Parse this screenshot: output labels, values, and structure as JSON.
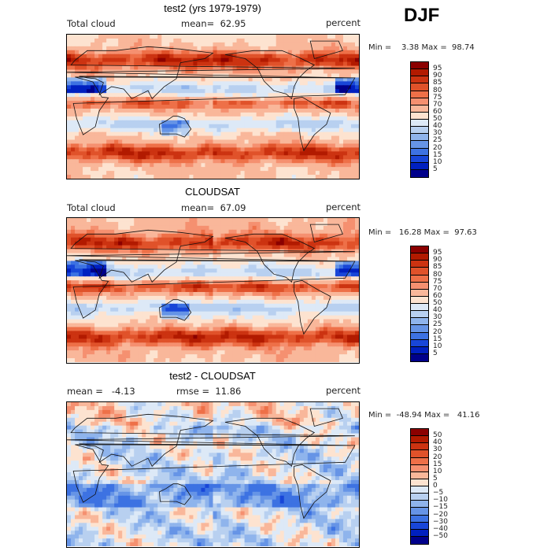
{
  "season": "DJF",
  "chart_data": [
    {
      "type": "heatmap",
      "title": "test2 (yrs 1979-1979)",
      "variable": "Total cloud",
      "mean_label": "mean=",
      "mean": "62.95",
      "units": "percent",
      "minmax": "Min =    3.38 Max =  98.74",
      "colorbar_levels": [
        "95",
        "90",
        "85",
        "80",
        "75",
        "70",
        "60",
        "50",
        "40",
        "30",
        "25",
        "20",
        "15",
        "10",
        "5"
      ],
      "colorbar_colors": [
        "#8b0000",
        "#b21a00",
        "#cc3311",
        "#e0522a",
        "#ee7048",
        "#f59070",
        "#f9b79a",
        "#fde3d0",
        "#dde9f7",
        "#b8d0f0",
        "#8fb4ec",
        "#6694e6",
        "#3d72e2",
        "#1846d8",
        "#0020c0",
        "#00008b"
      ],
      "field": "total_cloud_model"
    },
    {
      "type": "heatmap",
      "title": "CLOUDSAT",
      "variable": "Total cloud",
      "mean_label": "mean=",
      "mean": "67.09",
      "units": "percent",
      "minmax": "Min =   16.28 Max =  97.63",
      "colorbar_levels": [
        "95",
        "90",
        "85",
        "80",
        "75",
        "70",
        "60",
        "50",
        "40",
        "30",
        "25",
        "20",
        "15",
        "10",
        "5"
      ],
      "colorbar_colors": [
        "#8b0000",
        "#b21a00",
        "#cc3311",
        "#e0522a",
        "#ee7048",
        "#f59070",
        "#f9b79a",
        "#fde3d0",
        "#dde9f7",
        "#b8d0f0",
        "#8fb4ec",
        "#6694e6",
        "#3d72e2",
        "#1846d8",
        "#0020c0",
        "#00008b"
      ],
      "field": "total_cloud_obs"
    },
    {
      "type": "heatmap",
      "title": "test2 - CLOUDSAT",
      "mean_label": "mean =",
      "mean": "-4.13",
      "rmse_label": "rmse =",
      "rmse": "11.86",
      "units": "percent",
      "minmax": "Min =  -48.94 Max =   41.16",
      "colorbar_levels": [
        "50",
        "40",
        "30",
        "20",
        "15",
        "10",
        "5",
        "0",
        "−5",
        "−10",
        "−15",
        "−20",
        "−30",
        "−40",
        "−50"
      ],
      "colorbar_colors": [
        "#8b0000",
        "#b21a00",
        "#cc3311",
        "#e0522a",
        "#ee7048",
        "#f59070",
        "#f9b79a",
        "#fde3d0",
        "#dde9f7",
        "#b8d0f0",
        "#8fb4ec",
        "#6694e6",
        "#3d72e2",
        "#1846d8",
        "#0020c0",
        "#00008b"
      ],
      "field": "total_cloud_diff"
    }
  ]
}
